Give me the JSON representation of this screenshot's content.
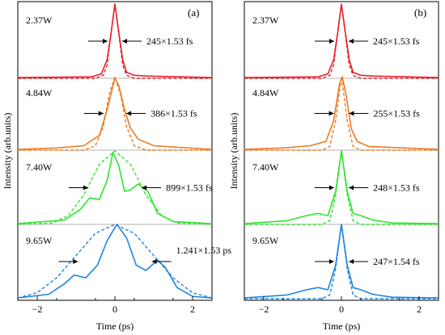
{
  "ylabel": "Intensity (arb.units)",
  "chart_data": [
    {
      "type": "line",
      "panel_label": "(a)",
      "xlabel": "Time (ps)",
      "ylabel": "Intensity (arb.units)",
      "xlim": [
        -2.5,
        2.5
      ],
      "xticks": [
        -2,
        0,
        2
      ],
      "xtick_labels": [
        "−2",
        "0",
        "2"
      ],
      "grid": false,
      "traces": [
        {
          "name": "2.37W",
          "color": "#e8202a",
          "width_label": "245×1.53 fs",
          "fwhm_ps": 0.375,
          "measured": [
            [
              -2.5,
              0.01
            ],
            [
              -0.6,
              0.02
            ],
            [
              -0.35,
              0.06
            ],
            [
              -0.2,
              0.25
            ],
            [
              -0.1,
              0.6
            ],
            [
              0,
              1
            ],
            [
              0.1,
              0.62
            ],
            [
              0.2,
              0.25
            ],
            [
              0.3,
              0.08
            ],
            [
              0.5,
              0.04
            ],
            [
              0.8,
              0.03
            ],
            [
              2.5,
              0.01
            ]
          ],
          "fit": [
            [
              -2.5,
              0
            ],
            [
              -0.5,
              0
            ],
            [
              -0.3,
              0.04
            ],
            [
              -0.2,
              0.18
            ],
            [
              -0.1,
              0.6
            ],
            [
              0,
              1
            ],
            [
              0.1,
              0.6
            ],
            [
              0.2,
              0.18
            ],
            [
              0.3,
              0.04
            ],
            [
              0.5,
              0
            ],
            [
              2.5,
              0
            ]
          ]
        },
        {
          "name": "4.84W",
          "color": "#f07a22",
          "width_label": "386×1.53 fs",
          "fwhm_ps": 0.59,
          "measured": [
            [
              -2.5,
              0.01
            ],
            [
              -1.5,
              0.03
            ],
            [
              -0.8,
              0.06
            ],
            [
              -0.4,
              0.2
            ],
            [
              -0.2,
              0.55
            ],
            [
              0,
              0.98
            ],
            [
              0.1,
              0.88
            ],
            [
              0.25,
              0.55
            ],
            [
              0.4,
              0.3
            ],
            [
              0.6,
              0.15
            ],
            [
              1,
              0.06
            ],
            [
              2.5,
              0.01
            ]
          ],
          "fit": [
            [
              -2.5,
              0
            ],
            [
              -0.8,
              0
            ],
            [
              -0.5,
              0.06
            ],
            [
              -0.3,
              0.32
            ],
            [
              -0.15,
              0.75
            ],
            [
              0,
              1
            ],
            [
              0.15,
              0.75
            ],
            [
              0.3,
              0.32
            ],
            [
              0.5,
              0.06
            ],
            [
              0.8,
              0
            ],
            [
              2.5,
              0
            ]
          ]
        },
        {
          "name": "7.40W",
          "color": "#2ee52e",
          "width_label": "899×1.53 fs",
          "fwhm_ps": 1.38,
          "measured": [
            [
              -2.5,
              0.01
            ],
            [
              -1.3,
              0.06
            ],
            [
              -0.9,
              0.2
            ],
            [
              -0.65,
              0.36
            ],
            [
              -0.4,
              0.34
            ],
            [
              -0.2,
              0.6
            ],
            [
              -0.05,
              0.98
            ],
            [
              0.1,
              0.8
            ],
            [
              0.25,
              0.45
            ],
            [
              0.4,
              0.47
            ],
            [
              0.6,
              0.55
            ],
            [
              0.85,
              0.45
            ],
            [
              1.1,
              0.15
            ],
            [
              1.5,
              0.04
            ],
            [
              2.5,
              0.01
            ]
          ],
          "fit": [
            [
              -2.5,
              0
            ],
            [
              -1.6,
              0.02
            ],
            [
              -1.2,
              0.12
            ],
            [
              -0.8,
              0.4
            ],
            [
              -0.4,
              0.82
            ],
            [
              0,
              1
            ],
            [
              0.4,
              0.82
            ],
            [
              0.8,
              0.4
            ],
            [
              1.2,
              0.12
            ],
            [
              1.6,
              0.02
            ],
            [
              2.5,
              0
            ]
          ]
        },
        {
          "name": "9.65W",
          "color": "#1f86e0",
          "width_label": "1.241×1.53 ps",
          "fwhm_ps": 1.9,
          "measured": [
            [
              -2.5,
              0.01
            ],
            [
              -1.7,
              0.06
            ],
            [
              -1.3,
              0.2
            ],
            [
              -1.05,
              0.32
            ],
            [
              -0.75,
              0.28
            ],
            [
              -0.45,
              0.45
            ],
            [
              -0.2,
              0.78
            ],
            [
              0.05,
              1
            ],
            [
              0.3,
              0.82
            ],
            [
              0.55,
              0.45
            ],
            [
              0.8,
              0.38
            ],
            [
              1.1,
              0.52
            ],
            [
              1.3,
              0.42
            ],
            [
              1.6,
              0.15
            ],
            [
              2,
              0.03
            ],
            [
              2.5,
              0.01
            ]
          ],
          "fit": [
            [
              -2.5,
              0.01
            ],
            [
              -2,
              0.08
            ],
            [
              -1.5,
              0.28
            ],
            [
              -1,
              0.58
            ],
            [
              -0.5,
              0.88
            ],
            [
              0,
              1
            ],
            [
              0.5,
              0.88
            ],
            [
              1,
              0.58
            ],
            [
              1.5,
              0.28
            ],
            [
              2,
              0.08
            ],
            [
              2.5,
              0.01
            ]
          ]
        }
      ]
    },
    {
      "type": "line",
      "panel_label": "(b)",
      "xlabel": "Time (ps)",
      "ylabel": "Intensity (arb.units)",
      "xlim": [
        -2.5,
        2.5
      ],
      "xticks": [
        -2,
        0,
        2
      ],
      "xtick_labels": [
        "−2",
        "0",
        "2"
      ],
      "grid": false,
      "traces": [
        {
          "name": "2.37W",
          "color": "#e8202a",
          "width_label": "245×1.53 fs",
          "fwhm_ps": 0.375,
          "measured": [
            [
              -2.5,
              0.01
            ],
            [
              -0.6,
              0.02
            ],
            [
              -0.35,
              0.06
            ],
            [
              -0.2,
              0.25
            ],
            [
              -0.1,
              0.6
            ],
            [
              0,
              1
            ],
            [
              0.1,
              0.62
            ],
            [
              0.2,
              0.25
            ],
            [
              0.3,
              0.08
            ],
            [
              0.5,
              0.04
            ],
            [
              0.8,
              0.03
            ],
            [
              2.5,
              0.01
            ]
          ],
          "fit": [
            [
              -2.5,
              0
            ],
            [
              -0.5,
              0
            ],
            [
              -0.3,
              0.04
            ],
            [
              -0.2,
              0.18
            ],
            [
              -0.1,
              0.6
            ],
            [
              0,
              1
            ],
            [
              0.1,
              0.6
            ],
            [
              0.2,
              0.18
            ],
            [
              0.3,
              0.04
            ],
            [
              0.5,
              0
            ],
            [
              2.5,
              0
            ]
          ]
        },
        {
          "name": "4.84W",
          "color": "#f07a22",
          "width_label": "255×1.53 fs",
          "fwhm_ps": 0.39,
          "measured": [
            [
              -2.5,
              0.01
            ],
            [
              -1.5,
              0.03
            ],
            [
              -0.8,
              0.06
            ],
            [
              -0.4,
              0.12
            ],
            [
              -0.2,
              0.4
            ],
            [
              -0.05,
              0.9
            ],
            [
              0.02,
              1
            ],
            [
              0.12,
              0.75
            ],
            [
              0.25,
              0.3
            ],
            [
              0.4,
              0.12
            ],
            [
              0.7,
              0.05
            ],
            [
              2.5,
              0.01
            ]
          ],
          "fit": [
            [
              -2.5,
              0
            ],
            [
              -0.5,
              0
            ],
            [
              -0.3,
              0.05
            ],
            [
              -0.15,
              0.4
            ],
            [
              0,
              1
            ],
            [
              0.15,
              0.4
            ],
            [
              0.3,
              0.05
            ],
            [
              0.5,
              0
            ],
            [
              2.5,
              0
            ]
          ]
        },
        {
          "name": "7.40W",
          "color": "#2ee52e",
          "width_label": "248×1.53 fs",
          "fwhm_ps": 0.38,
          "measured": [
            [
              -2.5,
              0.01
            ],
            [
              -1.4,
              0.05
            ],
            [
              -0.9,
              0.12
            ],
            [
              -0.6,
              0.15
            ],
            [
              -0.35,
              0.12
            ],
            [
              -0.15,
              0.45
            ],
            [
              0,
              1
            ],
            [
              0.15,
              0.45
            ],
            [
              0.3,
              0.15
            ],
            [
              0.5,
              0.12
            ],
            [
              0.8,
              0.06
            ],
            [
              1.3,
              0.02
            ],
            [
              2.5,
              0.01
            ]
          ],
          "fit": [
            [
              -2.5,
              0
            ],
            [
              -0.5,
              0
            ],
            [
              -0.3,
              0.05
            ],
            [
              -0.15,
              0.4
            ],
            [
              0,
              1
            ],
            [
              0.15,
              0.4
            ],
            [
              0.3,
              0.05
            ],
            [
              0.5,
              0
            ],
            [
              2.5,
              0
            ]
          ]
        },
        {
          "name": "9.65W",
          "color": "#1f86e0",
          "width_label": "247×1.54 fs",
          "fwhm_ps": 0.38,
          "measured": [
            [
              -2.5,
              0.01
            ],
            [
              -1.4,
              0.05
            ],
            [
              -0.9,
              0.12
            ],
            [
              -0.6,
              0.15
            ],
            [
              -0.35,
              0.12
            ],
            [
              -0.15,
              0.45
            ],
            [
              0,
              1
            ],
            [
              0.15,
              0.45
            ],
            [
              0.3,
              0.15
            ],
            [
              0.5,
              0.12
            ],
            [
              0.8,
              0.06
            ],
            [
              1.3,
              0.02
            ],
            [
              2.5,
              0.01
            ]
          ],
          "fit": [
            [
              -2.5,
              0
            ],
            [
              -0.5,
              0
            ],
            [
              -0.3,
              0.05
            ],
            [
              -0.15,
              0.4
            ],
            [
              0,
              1
            ],
            [
              0.15,
              0.4
            ],
            [
              0.3,
              0.05
            ],
            [
              0.5,
              0
            ],
            [
              2.5,
              0
            ]
          ]
        }
      ]
    }
  ]
}
